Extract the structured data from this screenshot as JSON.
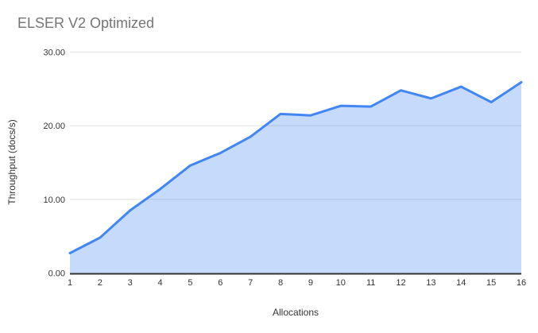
{
  "chart_data": {
    "type": "area",
    "title": "ELSER V2 Optimized",
    "xlabel": "Allocations",
    "ylabel": "Throughput (docs/s)",
    "x": [
      1,
      2,
      3,
      4,
      5,
      6,
      7,
      8,
      9,
      10,
      11,
      12,
      13,
      14,
      15,
      16
    ],
    "x_tick_labels": [
      "1",
      "2",
      "3",
      "4",
      "5",
      "6",
      "7",
      "8",
      "9",
      "10",
      "11",
      "12",
      "13",
      "14",
      "15",
      "16"
    ],
    "series": [
      {
        "name": "Throughput (docs/s)",
        "values": [
          2.7,
          4.8,
          8.5,
          11.4,
          14.6,
          16.3,
          18.5,
          21.6,
          21.4,
          22.7,
          22.6,
          24.8,
          23.7,
          25.3,
          23.2,
          25.9
        ]
      }
    ],
    "ylim": [
      0,
      30
    ],
    "y_ticks": [
      0,
      10,
      20,
      30
    ],
    "y_tick_labels": [
      "0.00",
      "10.00",
      "20.00",
      "30.00"
    ],
    "grid": true,
    "legend": "none",
    "colors": {
      "line": "#4285f4",
      "fill": "rgba(66,133,244,0.30)",
      "gridline": "#e0e0e0",
      "axis_line": "#333333",
      "title_text": "#757575",
      "tick_text": "#333333"
    }
  }
}
